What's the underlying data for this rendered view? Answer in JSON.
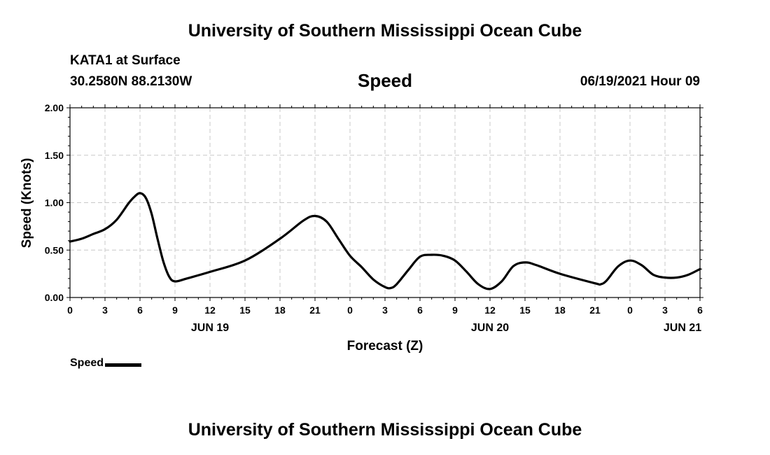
{
  "header": {
    "top_title": "University of Southern Mississippi Ocean Cube",
    "station": "KATA1 at Surface",
    "coords": "30.2580N  88.2130W",
    "variable": "Speed",
    "datetime": "06/19/2021 Hour 09",
    "bottom_title": "University of Southern Mississippi Ocean Cube"
  },
  "legend": {
    "label": "Speed"
  },
  "chart_data": {
    "type": "line",
    "title": "Speed",
    "xlabel": "Forecast (Z)",
    "ylabel": "Speed (Knots)",
    "xlim": [
      0,
      54
    ],
    "ylim": [
      0,
      2
    ],
    "grid": true,
    "y_ticks": [
      {
        "value": 0,
        "label": "0.00"
      },
      {
        "value": 0.5,
        "label": "0.50"
      },
      {
        "value": 1.0,
        "label": "1.00"
      },
      {
        "value": 1.5,
        "label": "1.50"
      },
      {
        "value": 2.0,
        "label": "2.00"
      }
    ],
    "x_ticks": [
      {
        "value": 0,
        "label": "0"
      },
      {
        "value": 3,
        "label": "3"
      },
      {
        "value": 6,
        "label": "6"
      },
      {
        "value": 9,
        "label": "9"
      },
      {
        "value": 12,
        "label": "12"
      },
      {
        "value": 15,
        "label": "15"
      },
      {
        "value": 18,
        "label": "18"
      },
      {
        "value": 21,
        "label": "21"
      },
      {
        "value": 24,
        "label": "0"
      },
      {
        "value": 27,
        "label": "3"
      },
      {
        "value": 30,
        "label": "6"
      },
      {
        "value": 33,
        "label": "9"
      },
      {
        "value": 36,
        "label": "12"
      },
      {
        "value": 39,
        "label": "15"
      },
      {
        "value": 42,
        "label": "18"
      },
      {
        "value": 45,
        "label": "21"
      },
      {
        "value": 48,
        "label": "0"
      },
      {
        "value": 51,
        "label": "3"
      },
      {
        "value": 54,
        "label": "6"
      }
    ],
    "date_labels": [
      {
        "value": 12,
        "label": "JUN 19"
      },
      {
        "value": 36,
        "label": "JUN 20"
      },
      {
        "value": 52.5,
        "label": "JUN 21"
      }
    ],
    "series": [
      {
        "name": "Speed",
        "x": [
          0,
          1,
          2,
          3,
          4,
          5,
          5.5,
          6,
          6.5,
          7,
          7.5,
          8,
          8.5,
          9,
          10,
          12,
          15,
          18,
          20,
          21,
          22,
          23,
          24,
          25,
          26,
          27,
          27.5,
          28,
          29,
          30,
          31,
          32,
          33,
          34,
          35,
          36,
          37,
          38,
          39,
          40,
          42,
          45,
          45.5,
          46,
          47,
          48,
          49,
          50,
          51,
          52,
          53,
          54
        ],
        "values": [
          0.59,
          0.62,
          0.67,
          0.72,
          0.82,
          0.99,
          1.06,
          1.1,
          1.05,
          0.88,
          0.62,
          0.38,
          0.22,
          0.17,
          0.2,
          0.27,
          0.39,
          0.62,
          0.81,
          0.86,
          0.8,
          0.62,
          0.44,
          0.32,
          0.19,
          0.11,
          0.1,
          0.14,
          0.29,
          0.43,
          0.45,
          0.44,
          0.39,
          0.27,
          0.14,
          0.09,
          0.17,
          0.33,
          0.37,
          0.34,
          0.25,
          0.15,
          0.14,
          0.18,
          0.33,
          0.39,
          0.34,
          0.24,
          0.21,
          0.21,
          0.24,
          0.3
        ]
      }
    ]
  }
}
